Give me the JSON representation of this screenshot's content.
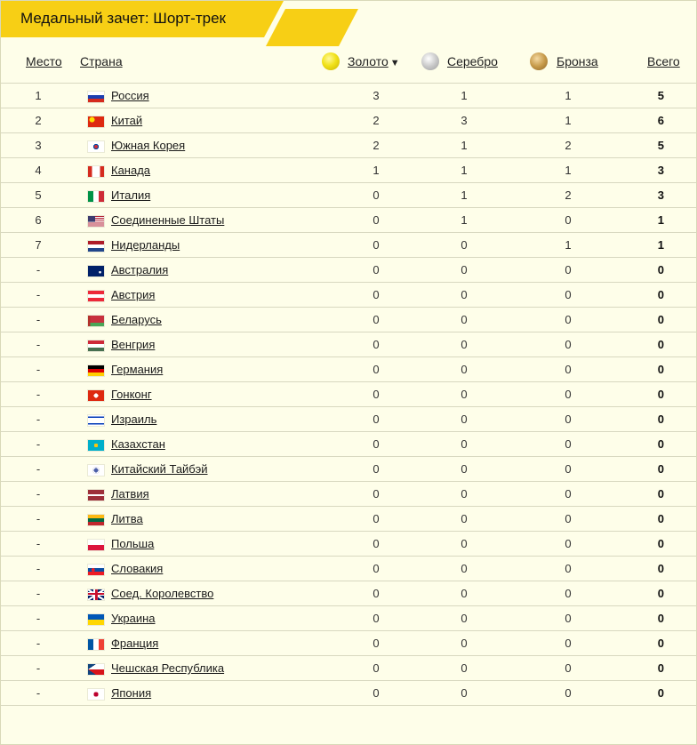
{
  "title": "Медальный зачет: Шорт-трек",
  "header": {
    "place": "Место",
    "country": "Страна",
    "gold": "Золото",
    "gold_sort": "▼",
    "silver": "Серебро",
    "bronze": "Бронза",
    "total": "Всего"
  },
  "rows": [
    {
      "place": "1",
      "country": "Россия",
      "flag": "flag-russia-icon",
      "gold": "3",
      "silver": "1",
      "bronze": "1",
      "total": "5"
    },
    {
      "place": "2",
      "country": "Китай",
      "flag": "flag-china-icon",
      "gold": "2",
      "silver": "3",
      "bronze": "1",
      "total": "6"
    },
    {
      "place": "3",
      "country": "Южная Корея",
      "flag": "flag-south-korea-icon",
      "gold": "2",
      "silver": "1",
      "bronze": "2",
      "total": "5"
    },
    {
      "place": "4",
      "country": "Канада",
      "flag": "flag-canada-icon",
      "gold": "1",
      "silver": "1",
      "bronze": "1",
      "total": "3"
    },
    {
      "place": "5",
      "country": "Италия",
      "flag": "flag-italy-icon",
      "gold": "0",
      "silver": "1",
      "bronze": "2",
      "total": "3"
    },
    {
      "place": "6",
      "country": "Соединенные Штаты",
      "flag": "flag-usa-icon",
      "gold": "0",
      "silver": "1",
      "bronze": "0",
      "total": "1"
    },
    {
      "place": "7",
      "country": "Нидерланды",
      "flag": "flag-netherlands-icon",
      "gold": "0",
      "silver": "0",
      "bronze": "1",
      "total": "1"
    },
    {
      "place": "-",
      "country": "Австралия",
      "flag": "flag-australia-icon",
      "gold": "0",
      "silver": "0",
      "bronze": "0",
      "total": "0"
    },
    {
      "place": "-",
      "country": "Австрия",
      "flag": "flag-austria-icon",
      "gold": "0",
      "silver": "0",
      "bronze": "0",
      "total": "0"
    },
    {
      "place": "-",
      "country": "Беларусь",
      "flag": "flag-belarus-icon",
      "gold": "0",
      "silver": "0",
      "bronze": "0",
      "total": "0"
    },
    {
      "place": "-",
      "country": "Венгрия",
      "flag": "flag-hungary-icon",
      "gold": "0",
      "silver": "0",
      "bronze": "0",
      "total": "0"
    },
    {
      "place": "-",
      "country": "Германия",
      "flag": "flag-germany-icon",
      "gold": "0",
      "silver": "0",
      "bronze": "0",
      "total": "0"
    },
    {
      "place": "-",
      "country": "Гонконг",
      "flag": "flag-hong-kong-icon",
      "gold": "0",
      "silver": "0",
      "bronze": "0",
      "total": "0"
    },
    {
      "place": "-",
      "country": "Израиль",
      "flag": "flag-israel-icon",
      "gold": "0",
      "silver": "0",
      "bronze": "0",
      "total": "0"
    },
    {
      "place": "-",
      "country": "Казахстан",
      "flag": "flag-kazakhstan-icon",
      "gold": "0",
      "silver": "0",
      "bronze": "0",
      "total": "0"
    },
    {
      "place": "-",
      "country": "Китайский Тайбэй",
      "flag": "flag-chinese-taipei-icon",
      "gold": "0",
      "silver": "0",
      "bronze": "0",
      "total": "0"
    },
    {
      "place": "-",
      "country": "Латвия",
      "flag": "flag-latvia-icon",
      "gold": "0",
      "silver": "0",
      "bronze": "0",
      "total": "0"
    },
    {
      "place": "-",
      "country": "Литва",
      "flag": "flag-lithuania-icon",
      "gold": "0",
      "silver": "0",
      "bronze": "0",
      "total": "0"
    },
    {
      "place": "-",
      "country": "Польша",
      "flag": "flag-poland-icon",
      "gold": "0",
      "silver": "0",
      "bronze": "0",
      "total": "0"
    },
    {
      "place": "-",
      "country": "Словакия",
      "flag": "flag-slovakia-icon",
      "gold": "0",
      "silver": "0",
      "bronze": "0",
      "total": "0"
    },
    {
      "place": "-",
      "country": "Соед. Королевство",
      "flag": "flag-united-kingdom-icon",
      "gold": "0",
      "silver": "0",
      "bronze": "0",
      "total": "0"
    },
    {
      "place": "-",
      "country": "Украина",
      "flag": "flag-ukraine-icon",
      "gold": "0",
      "silver": "0",
      "bronze": "0",
      "total": "0"
    },
    {
      "place": "-",
      "country": "Франция",
      "flag": "flag-france-icon",
      "gold": "0",
      "silver": "0",
      "bronze": "0",
      "total": "0"
    },
    {
      "place": "-",
      "country": "Чешская Республика",
      "flag": "flag-czech-republic-icon",
      "gold": "0",
      "silver": "0",
      "bronze": "0",
      "total": "0"
    },
    {
      "place": "-",
      "country": "Япония",
      "flag": "flag-japan-icon",
      "gold": "0",
      "silver": "0",
      "bronze": "0",
      "total": "0"
    }
  ],
  "colors": {
    "accent": "#f7cf15",
    "background": "#fefee9",
    "divider": "#d8d8c0"
  }
}
